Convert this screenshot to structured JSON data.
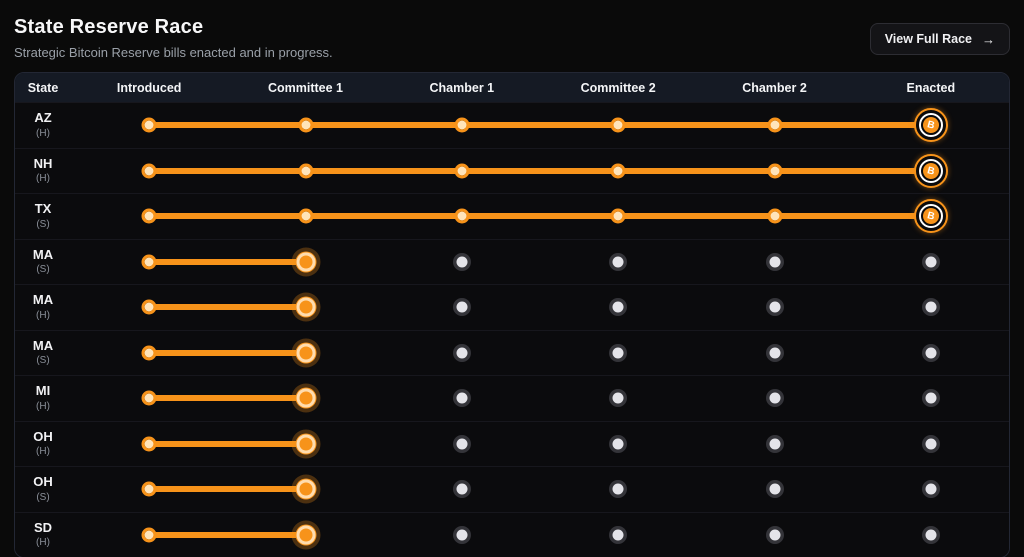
{
  "header": {
    "title": "State Reserve Race",
    "subtitle": "Strategic Bitcoin Reserve bills enacted and in progress.",
    "button_label": "View Full Race"
  },
  "icons": {
    "arrow_right": "→",
    "bitcoin": "B"
  },
  "colors": {
    "accent": "#f7931a",
    "page_bg": "#0a0a0a",
    "row_bg": "#0b0b0d",
    "header_bg": "#151a24",
    "table_border": "#232734",
    "completed_dot_core": "#ffe4ba",
    "pending_dot": "#e4e4e9"
  },
  "table": {
    "columns": [
      "State",
      "Introduced",
      "Committee 1",
      "Chamber 1",
      "Committee 2",
      "Chamber 2",
      "Enacted"
    ],
    "rows": [
      {
        "state": "AZ",
        "chamber": "(H)",
        "stage": 5,
        "enacted": true
      },
      {
        "state": "NH",
        "chamber": "(H)",
        "stage": 5,
        "enacted": true
      },
      {
        "state": "TX",
        "chamber": "(S)",
        "stage": 5,
        "enacted": true
      },
      {
        "state": "MA",
        "chamber": "(S)",
        "stage": 1,
        "enacted": false
      },
      {
        "state": "MA",
        "chamber": "(H)",
        "stage": 1,
        "enacted": false
      },
      {
        "state": "MA",
        "chamber": "(S)",
        "stage": 1,
        "enacted": false
      },
      {
        "state": "MI",
        "chamber": "(H)",
        "stage": 1,
        "enacted": false
      },
      {
        "state": "OH",
        "chamber": "(H)",
        "stage": 1,
        "enacted": false
      },
      {
        "state": "OH",
        "chamber": "(S)",
        "stage": 1,
        "enacted": false
      },
      {
        "state": "SD",
        "chamber": "(H)",
        "stage": 1,
        "enacted": false
      }
    ]
  }
}
